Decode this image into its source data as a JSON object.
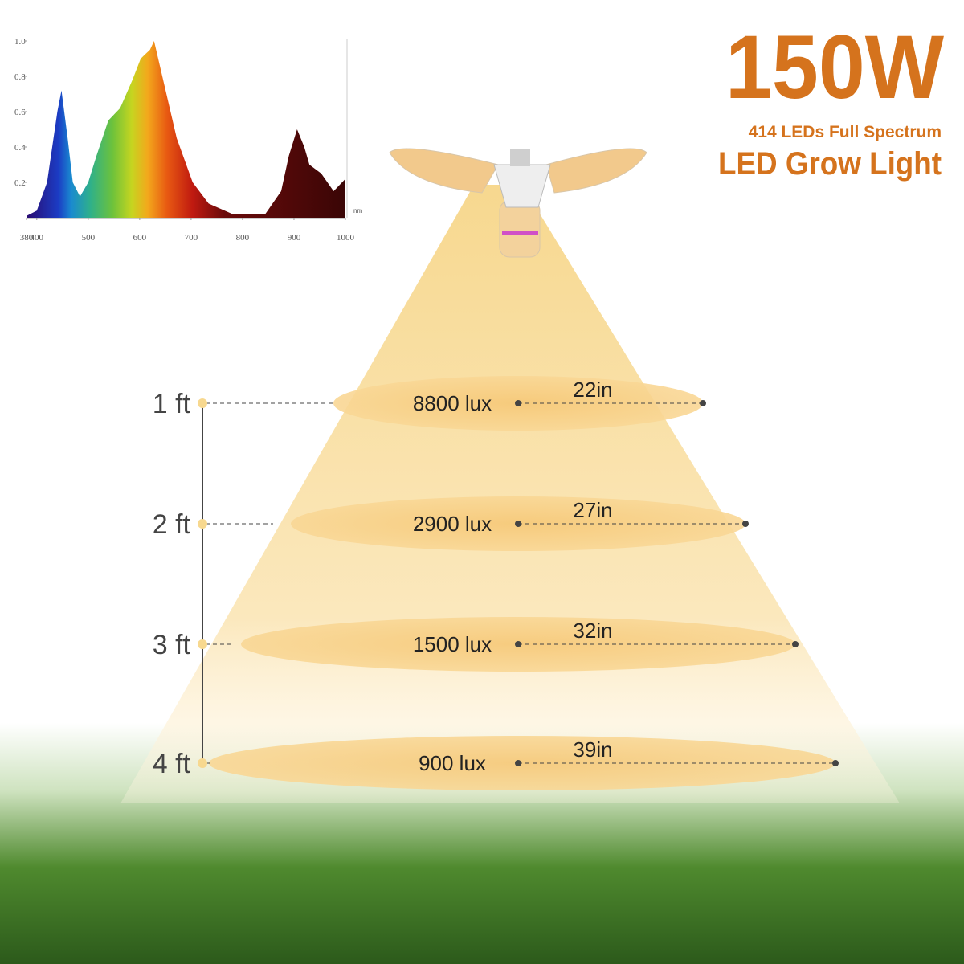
{
  "header": {
    "title": "150W",
    "subtitle": "414 LEDs Full Spectrum",
    "product": "LED Grow Light"
  },
  "chart_data": {
    "type": "area",
    "x_unit": "nm",
    "x": [
      380,
      400,
      420,
      440,
      448,
      460,
      470,
      484,
      500,
      516,
      539,
      562,
      586,
      602,
      609,
      620,
      628,
      648,
      672,
      703,
      734,
      781,
      844,
      875,
      890,
      906,
      920,
      930,
      953,
      977,
      1000
    ],
    "values": [
      0.01,
      0.04,
      0.2,
      0.6,
      0.72,
      0.45,
      0.2,
      0.12,
      0.2,
      0.35,
      0.55,
      0.62,
      0.78,
      0.9,
      0.92,
      0.95,
      1.0,
      0.75,
      0.45,
      0.2,
      0.08,
      0.02,
      0.02,
      0.15,
      0.35,
      0.5,
      0.4,
      0.3,
      0.25,
      0.15,
      0.22
    ],
    "xlim": [
      380,
      1000
    ],
    "ylim": [
      0,
      1
    ],
    "xticks": [
      380,
      400,
      500,
      600,
      700,
      800,
      900,
      1000
    ],
    "yticks": [
      0.2,
      0.4,
      0.6,
      0.8,
      {
        "value": 1,
        "label": "1.0"
      }
    ]
  },
  "levels": [
    {
      "height": "1 ft",
      "lux": "8800 lux",
      "spread": "22in"
    },
    {
      "height": "2 ft",
      "lux": "2900 lux",
      "spread": "27in"
    },
    {
      "height": "3 ft",
      "lux": "1500 lux",
      "spread": "32in"
    },
    {
      "height": "4 ft",
      "lux": "900 lux",
      "spread": "39in"
    }
  ]
}
